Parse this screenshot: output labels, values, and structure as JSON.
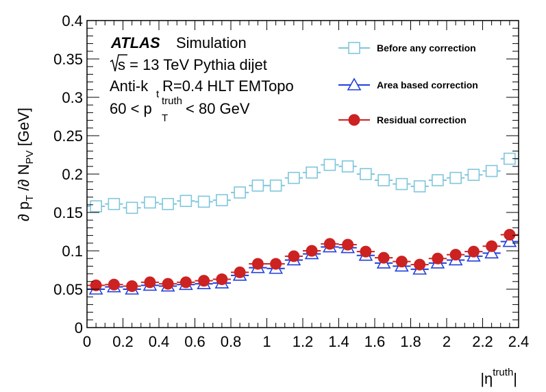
{
  "chart_data": {
    "type": "scatter",
    "title": "",
    "xlabel": "|η^truth|",
    "ylabel": "∂ p_T /∂ N_PV  [GeV]",
    "xlim": [
      0,
      2.4
    ],
    "ylim": [
      0,
      0.4
    ],
    "x_ticks": [
      0,
      0.2,
      0.4,
      0.6,
      0.8,
      1,
      1.2,
      1.4,
      1.6,
      1.8,
      2,
      2.2,
      2.4
    ],
    "x_tick_labels": [
      "0",
      "0.2",
      "0.4",
      "0.6",
      "0.8",
      "1",
      "1.2",
      "1.4",
      "1.6",
      "1.8",
      "2",
      "2.2",
      "2.4"
    ],
    "y_ticks": [
      0,
      0.05,
      0.1,
      0.15,
      0.2,
      0.25,
      0.3,
      0.35,
      0.4
    ],
    "y_tick_labels": [
      "0",
      "0.05",
      "0.1",
      "0.15",
      "0.2",
      "0.25",
      "0.3",
      "0.35",
      "0.4"
    ],
    "x": [
      0.05,
      0.15,
      0.25,
      0.35,
      0.45,
      0.55,
      0.65,
      0.75,
      0.85,
      0.95,
      1.05,
      1.15,
      1.25,
      1.35,
      1.45,
      1.55,
      1.65,
      1.75,
      1.85,
      1.95,
      2.05,
      2.15,
      2.25,
      2.35
    ],
    "series": [
      {
        "name": "Before any correction",
        "color": "#7fc6dc",
        "marker": "open-square",
        "values": [
          0.158,
          0.161,
          0.156,
          0.163,
          0.161,
          0.165,
          0.164,
          0.166,
          0.176,
          0.185,
          0.185,
          0.195,
          0.202,
          0.212,
          0.21,
          0.2,
          0.192,
          0.187,
          0.184,
          0.192,
          0.195,
          0.199,
          0.204,
          0.22
        ]
      },
      {
        "name": "Area based correction",
        "color": "#1f3fdc",
        "marker": "open-triangle",
        "values": [
          0.05,
          0.053,
          0.05,
          0.055,
          0.054,
          0.056,
          0.057,
          0.058,
          0.068,
          0.078,
          0.077,
          0.088,
          0.096,
          0.105,
          0.104,
          0.094,
          0.084,
          0.08,
          0.076,
          0.084,
          0.088,
          0.093,
          0.097,
          0.112
        ]
      },
      {
        "name": "Residual correction",
        "color": "#cc2222",
        "marker": "filled-circle",
        "values": [
          0.055,
          0.056,
          0.054,
          0.059,
          0.057,
          0.059,
          0.061,
          0.063,
          0.072,
          0.083,
          0.083,
          0.093,
          0.1,
          0.109,
          0.108,
          0.099,
          0.091,
          0.086,
          0.082,
          0.09,
          0.095,
          0.099,
          0.106,
          0.121
        ]
      }
    ],
    "annotations": {
      "atlas": "ATLAS",
      "simulation": "Simulation",
      "line2": "s = 13 TeV Pythia dijet",
      "line3_pre": "Anti-k",
      "line3_sub": "t",
      "line3_post": " R=0.4 HLT EMTopo",
      "line4_pre": "60 < p",
      "line4_sup": "truth",
      "line4_sub": "T",
      "line4_post": "< 80 GeV"
    },
    "legend_position": "top-right"
  }
}
